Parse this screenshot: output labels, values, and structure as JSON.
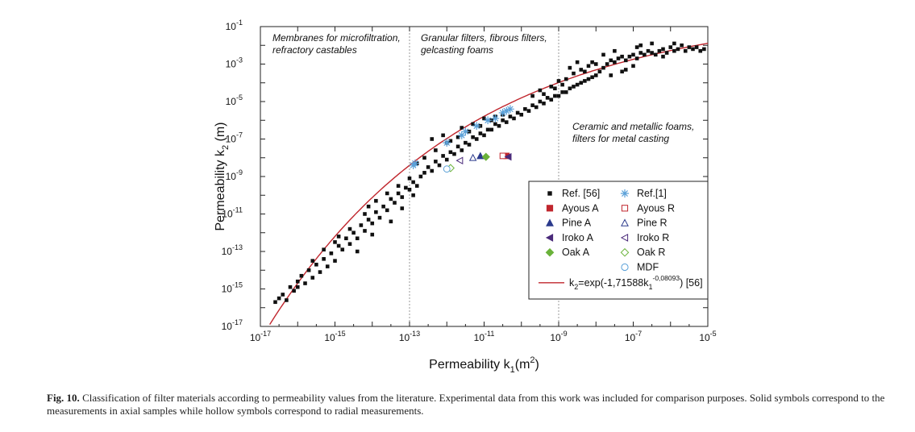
{
  "chart_data": {
    "type": "scatter",
    "xlog": true,
    "ylog": true,
    "xlim_exp": [
      -17,
      -5
    ],
    "ylim_exp": [
      -17,
      -1
    ],
    "xtick_exps": [
      -17,
      -15,
      -13,
      -11,
      -9,
      -7,
      -5
    ],
    "ytick_exps": [
      -17,
      -15,
      -13,
      -11,
      -9,
      -7,
      -5,
      -3,
      -1
    ],
    "xlabel": {
      "main": "Permeability k",
      "sub": "1",
      "rest": "(m",
      "sup": "2",
      "end": ")"
    },
    "ylabel": {
      "main": "Permeability k",
      "sub": "2",
      "rest": " (m)"
    },
    "dividers_x_exp": [
      -13,
      -9
    ],
    "region_labels": [
      {
        "lines": [
          "Membranes for microfiltration,",
          "refractory castables"
        ]
      },
      {
        "lines": [
          "Granular filters, fibrous filters,",
          "gelcasting foams"
        ]
      },
      {
        "lines": [
          "Ceramic and metallic foams,",
          "filters for metal casting"
        ]
      }
    ],
    "fit": {
      "a": 1.71588,
      "b": 0.08093,
      "color": "#c0262d"
    },
    "series": [
      {
        "name": "Ref. [56]",
        "marker": "square",
        "color": "#111111",
        "points": [
          [
            -16.6,
            -15.7
          ],
          [
            -16.5,
            -15.5
          ],
          [
            -16.4,
            -15.3
          ],
          [
            -16.3,
            -15.6
          ],
          [
            -16.2,
            -14.9
          ],
          [
            -16.1,
            -15.1
          ],
          [
            -16.0,
            -14.6
          ],
          [
            -16.0,
            -14.9
          ],
          [
            -15.9,
            -14.3
          ],
          [
            -15.8,
            -14.7
          ],
          [
            -15.7,
            -14.0
          ],
          [
            -15.6,
            -14.4
          ],
          [
            -15.5,
            -13.7
          ],
          [
            -15.4,
            -14.1
          ],
          [
            -15.3,
            -13.4
          ],
          [
            -15.2,
            -13.8
          ],
          [
            -15.1,
            -13.1
          ],
          [
            -15.0,
            -13.5
          ],
          [
            -14.9,
            -12.7
          ],
          [
            -14.8,
            -12.9
          ],
          [
            -14.7,
            -12.3
          ],
          [
            -14.6,
            -12.6
          ],
          [
            -14.5,
            -12.0
          ],
          [
            -14.4,
            -12.3
          ],
          [
            -14.3,
            -11.6
          ],
          [
            -14.2,
            -11.9
          ],
          [
            -14.1,
            -11.3
          ],
          [
            -14.0,
            -11.5
          ],
          [
            -13.9,
            -10.9
          ],
          [
            -13.8,
            -11.2
          ],
          [
            -13.7,
            -10.6
          ],
          [
            -13.6,
            -10.8
          ],
          [
            -13.5,
            -10.2
          ],
          [
            -13.4,
            -10.4
          ],
          [
            -13.3,
            -9.9
          ],
          [
            -13.2,
            -10.1
          ],
          [
            -13.1,
            -9.6
          ],
          [
            -13.0,
            -9.7
          ],
          [
            -12.9,
            -9.3
          ],
          [
            -12.8,
            -9.5
          ],
          [
            -14.9,
            -12.2
          ],
          [
            -14.6,
            -11.8
          ],
          [
            -14.2,
            -11.0
          ],
          [
            -14.1,
            -10.6
          ],
          [
            -13.9,
            -10.3
          ],
          [
            -13.6,
            -9.9
          ],
          [
            -13.3,
            -9.5
          ],
          [
            -13.0,
            -9.1
          ],
          [
            -15.3,
            -12.9
          ],
          [
            -15.0,
            -12.5
          ],
          [
            -14.4,
            -13.0
          ],
          [
            -14.0,
            -12.1
          ],
          [
            -13.5,
            -11.4
          ],
          [
            -13.2,
            -10.7
          ],
          [
            -12.9,
            -10.0
          ],
          [
            -15.6,
            -13.5
          ],
          [
            -12.7,
            -9.0
          ],
          [
            -12.6,
            -8.8
          ],
          [
            -12.5,
            -8.5
          ],
          [
            -12.4,
            -8.7
          ],
          [
            -12.3,
            -8.2
          ],
          [
            -12.2,
            -8.4
          ],
          [
            -12.1,
            -7.9
          ],
          [
            -12.0,
            -8.1
          ],
          [
            -11.9,
            -7.7
          ],
          [
            -11.8,
            -7.8
          ],
          [
            -11.7,
            -7.4
          ],
          [
            -11.6,
            -7.6
          ],
          [
            -11.5,
            -7.2
          ],
          [
            -11.4,
            -7.3
          ],
          [
            -11.3,
            -6.9
          ],
          [
            -11.2,
            -7.0
          ],
          [
            -11.1,
            -6.7
          ],
          [
            -11.0,
            -6.8
          ],
          [
            -10.9,
            -6.5
          ],
          [
            -10.8,
            -6.5
          ],
          [
            -10.7,
            -6.2
          ],
          [
            -10.6,
            -6.3
          ],
          [
            -10.5,
            -6.0
          ],
          [
            -10.4,
            -6.1
          ],
          [
            -12.6,
            -8.0
          ],
          [
            -12.3,
            -7.6
          ],
          [
            -12.0,
            -7.2
          ],
          [
            -11.7,
            -6.9
          ],
          [
            -11.4,
            -6.6
          ],
          [
            -11.1,
            -6.3
          ],
          [
            -10.8,
            -6.0
          ],
          [
            -10.5,
            -5.7
          ],
          [
            -12.8,
            -8.3
          ],
          [
            -12.4,
            -7.0
          ],
          [
            -12.1,
            -6.8
          ],
          [
            -11.9,
            -7.1
          ],
          [
            -11.6,
            -6.4
          ],
          [
            -11.3,
            -6.2
          ],
          [
            -11.0,
            -5.9
          ],
          [
            -10.7,
            -5.8
          ],
          [
            -10.3,
            -5.8
          ],
          [
            -10.2,
            -5.9
          ],
          [
            -10.1,
            -5.6
          ],
          [
            -10.0,
            -5.7
          ],
          [
            -9.9,
            -5.4
          ],
          [
            -9.8,
            -5.5
          ],
          [
            -9.7,
            -5.2
          ],
          [
            -9.6,
            -5.3
          ],
          [
            -9.5,
            -5.0
          ],
          [
            -9.4,
            -5.1
          ],
          [
            -9.3,
            -4.8
          ],
          [
            -9.2,
            -4.9
          ],
          [
            -9.1,
            -4.7
          ],
          [
            -9.0,
            -4.7
          ],
          [
            -8.9,
            -4.5
          ],
          [
            -8.8,
            -4.5
          ],
          [
            -8.7,
            -4.3
          ],
          [
            -8.6,
            -4.2
          ],
          [
            -8.5,
            -4.1
          ],
          [
            -8.4,
            -4.0
          ],
          [
            -8.3,
            -3.9
          ],
          [
            -8.2,
            -3.8
          ],
          [
            -8.1,
            -3.7
          ],
          [
            -8.0,
            -3.6
          ],
          [
            -9.5,
            -4.4
          ],
          [
            -9.2,
            -4.2
          ],
          [
            -9.0,
            -3.9
          ],
          [
            -8.8,
            -3.8
          ],
          [
            -8.6,
            -3.5
          ],
          [
            -8.4,
            -3.3
          ],
          [
            -8.2,
            -3.1
          ],
          [
            -8.0,
            -3.0
          ],
          [
            -9.7,
            -4.7
          ],
          [
            -9.4,
            -4.6
          ],
          [
            -9.1,
            -4.3
          ],
          [
            -8.9,
            -4.1
          ],
          [
            -8.7,
            -3.2
          ],
          [
            -8.5,
            -2.9
          ],
          [
            -8.3,
            -3.4
          ],
          [
            -8.1,
            -2.9
          ],
          [
            -7.9,
            -3.4
          ],
          [
            -7.8,
            -3.2
          ],
          [
            -7.7,
            -3.0
          ],
          [
            -7.6,
            -2.8
          ],
          [
            -7.5,
            -2.9
          ],
          [
            -7.4,
            -2.7
          ],
          [
            -7.3,
            -2.6
          ],
          [
            -7.2,
            -2.8
          ],
          [
            -7.1,
            -2.6
          ],
          [
            -7.0,
            -2.5
          ],
          [
            -6.9,
            -2.7
          ],
          [
            -6.8,
            -2.4
          ],
          [
            -6.7,
            -2.5
          ],
          [
            -6.6,
            -2.3
          ],
          [
            -6.5,
            -2.4
          ],
          [
            -6.4,
            -2.5
          ],
          [
            -6.3,
            -2.3
          ],
          [
            -6.2,
            -2.2
          ],
          [
            -6.1,
            -2.4
          ],
          [
            -6.0,
            -2.1
          ],
          [
            -5.9,
            -2.3
          ],
          [
            -5.8,
            -2.2
          ],
          [
            -5.7,
            -2.0
          ],
          [
            -5.6,
            -2.3
          ],
          [
            -7.8,
            -2.5
          ],
          [
            -7.5,
            -2.3
          ],
          [
            -7.3,
            -3.4
          ],
          [
            -7.0,
            -3.1
          ],
          [
            -6.8,
            -2.0
          ],
          [
            -6.5,
            -1.9
          ],
          [
            -6.2,
            -2.6
          ],
          [
            -5.9,
            -1.9
          ],
          [
            -5.5,
            -2.1
          ],
          [
            -5.4,
            -2.2
          ],
          [
            -5.3,
            -2.1
          ],
          [
            -5.2,
            -2.3
          ],
          [
            -5.1,
            -2.2
          ],
          [
            -7.6,
            -3.6
          ],
          [
            -7.2,
            -3.3
          ],
          [
            -6.9,
            -2.1
          ]
        ]
      },
      {
        "name": "Ref.[1]",
        "marker": "asterisk",
        "color": "#5aa0d8",
        "points": [
          [
            -12.9,
            -8.4
          ],
          [
            -12.85,
            -8.3
          ],
          [
            -12.0,
            -7.2
          ],
          [
            -11.6,
            -6.8
          ],
          [
            -11.5,
            -6.6
          ],
          [
            -11.2,
            -6.3
          ],
          [
            -10.9,
            -6.0
          ],
          [
            -10.7,
            -5.9
          ],
          [
            -10.5,
            -5.6
          ],
          [
            -10.4,
            -5.5
          ],
          [
            -10.3,
            -5.4
          ]
        ]
      },
      {
        "name": "Ayous A",
        "marker": "square",
        "color": "#c0262d",
        "points": [
          [
            -10.4,
            -7.9
          ]
        ]
      },
      {
        "name": "Ayous R",
        "marker": "square-open",
        "color": "#c0262d",
        "points": [
          [
            -10.5,
            -7.9
          ]
        ]
      },
      {
        "name": "Pine A",
        "marker": "triangle",
        "color": "#2b3a8c",
        "points": [
          [
            -11.1,
            -7.9
          ]
        ]
      },
      {
        "name": "Pine R",
        "marker": "triangle-open",
        "color": "#2b3a8c",
        "points": [
          [
            -11.3,
            -8.0
          ]
        ]
      },
      {
        "name": "Iroko A",
        "marker": "triangle-left",
        "color": "#4a2a7a",
        "points": [
          [
            -10.35,
            -7.95
          ]
        ]
      },
      {
        "name": "Iroko R",
        "marker": "triangle-left-open",
        "color": "#4a2a7a",
        "points": [
          [
            -11.65,
            -8.15
          ]
        ]
      },
      {
        "name": "Oak A",
        "marker": "diamond",
        "color": "#6ab23a",
        "points": [
          [
            -10.95,
            -7.95
          ]
        ]
      },
      {
        "name": "Oak R",
        "marker": "diamond-open",
        "color": "#6ab23a",
        "points": [
          [
            -11.9,
            -8.55
          ]
        ]
      },
      {
        "name": "MDF",
        "marker": "circle-open",
        "color": "#5aa0d8",
        "points": [
          [
            -12.0,
            -8.6
          ]
        ]
      }
    ],
    "legend": {
      "placement": "bottom-right",
      "rows": [
        [
          "Ref. [56]",
          "Ref.[1]"
        ],
        [
          "Ayous A",
          "Ayous R"
        ],
        [
          "Pine A",
          "Pine R"
        ],
        [
          "Iroko A",
          "Iroko R"
        ],
        [
          "Oak A",
          "Oak R"
        ],
        [
          "",
          "MDF"
        ]
      ],
      "fit_label": {
        "pre": "k",
        "sub1": "2",
        "mid": "=exp(-1,71588k",
        "sub2": "1",
        "sup": "-0,08093",
        "post": ") [56]"
      }
    }
  },
  "caption": {
    "label": "Fig. 10.",
    "text": " Classification of filter materials according to permeability values from the literature. Experimental data from this work was included for comparison purposes. Solid symbols correspond to the measurements in axial samples while hollow symbols correspond to radial measurements."
  }
}
